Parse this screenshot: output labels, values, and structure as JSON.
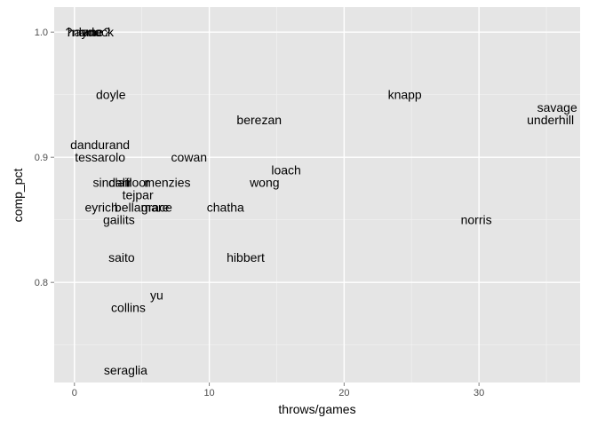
{
  "chart_data": {
    "type": "scatter",
    "marker": "text-label",
    "xlabel": "throws/games",
    "ylabel": "comp_pct",
    "xlim": [
      -1.5,
      37.5
    ],
    "ylim": [
      0.72,
      1.02
    ],
    "x_ticks": [
      0,
      10,
      20,
      30
    ],
    "y_ticks": [
      0.8,
      0.9,
      1.0
    ],
    "x_tick_labels": [
      "0",
      "10",
      "20",
      "30"
    ],
    "y_tick_labels": [
      "0.8",
      "0.9",
      "1.0"
    ],
    "grid": true,
    "colors": {
      "panel": "#e5e5e5",
      "grid_major": "#ffffff",
      "grid_minor": "#f2f2f2",
      "text": "#000000",
      "tick_text": "#4d4d4d"
    },
    "points": [
      {
        "label": "?name?",
        "x": 1.0,
        "y": 1.0
      },
      {
        "label": "haydock",
        "x": 1.2,
        "y": 1.0
      },
      {
        "label": "lane",
        "x": 1.2,
        "y": 1.0
      },
      {
        "label": "doyle",
        "x": 2.7,
        "y": 0.95
      },
      {
        "label": "dandurand",
        "x": 1.9,
        "y": 0.91
      },
      {
        "label": "tessarolo",
        "x": 1.9,
        "y": 0.9
      },
      {
        "label": "cowan",
        "x": 8.5,
        "y": 0.9
      },
      {
        "label": "sinclair",
        "x": 2.8,
        "y": 0.88
      },
      {
        "label": "dahl",
        "x": 3.4,
        "y": 0.88
      },
      {
        "label": "floor",
        "x": 4.7,
        "y": 0.88
      },
      {
        "label": "menzies",
        "x": 6.9,
        "y": 0.88
      },
      {
        "label": "tejpar",
        "x": 4.7,
        "y": 0.87
      },
      {
        "label": "eyrich",
        "x": 2.0,
        "y": 0.86
      },
      {
        "label": "bellamare",
        "x": 5.0,
        "y": 0.86
      },
      {
        "label": "grace",
        "x": 6.1,
        "y": 0.86
      },
      {
        "label": "chatha",
        "x": 11.2,
        "y": 0.86
      },
      {
        "label": "gailits",
        "x": 3.3,
        "y": 0.85
      },
      {
        "label": "saito",
        "x": 3.5,
        "y": 0.82
      },
      {
        "label": "hibbert",
        "x": 12.7,
        "y": 0.82
      },
      {
        "label": "yu",
        "x": 6.1,
        "y": 0.79
      },
      {
        "label": "collins",
        "x": 4.0,
        "y": 0.78
      },
      {
        "label": "seraglia",
        "x": 3.8,
        "y": 0.73
      },
      {
        "label": "berezan",
        "x": 13.7,
        "y": 0.93
      },
      {
        "label": "loach",
        "x": 15.7,
        "y": 0.89
      },
      {
        "label": "wong",
        "x": 14.1,
        "y": 0.88
      },
      {
        "label": "knapp",
        "x": 24.5,
        "y": 0.95
      },
      {
        "label": "norris",
        "x": 29.8,
        "y": 0.85
      },
      {
        "label": "savage",
        "x": 35.8,
        "y": 0.94
      },
      {
        "label": "underhill",
        "x": 35.3,
        "y": 0.93
      }
    ]
  }
}
